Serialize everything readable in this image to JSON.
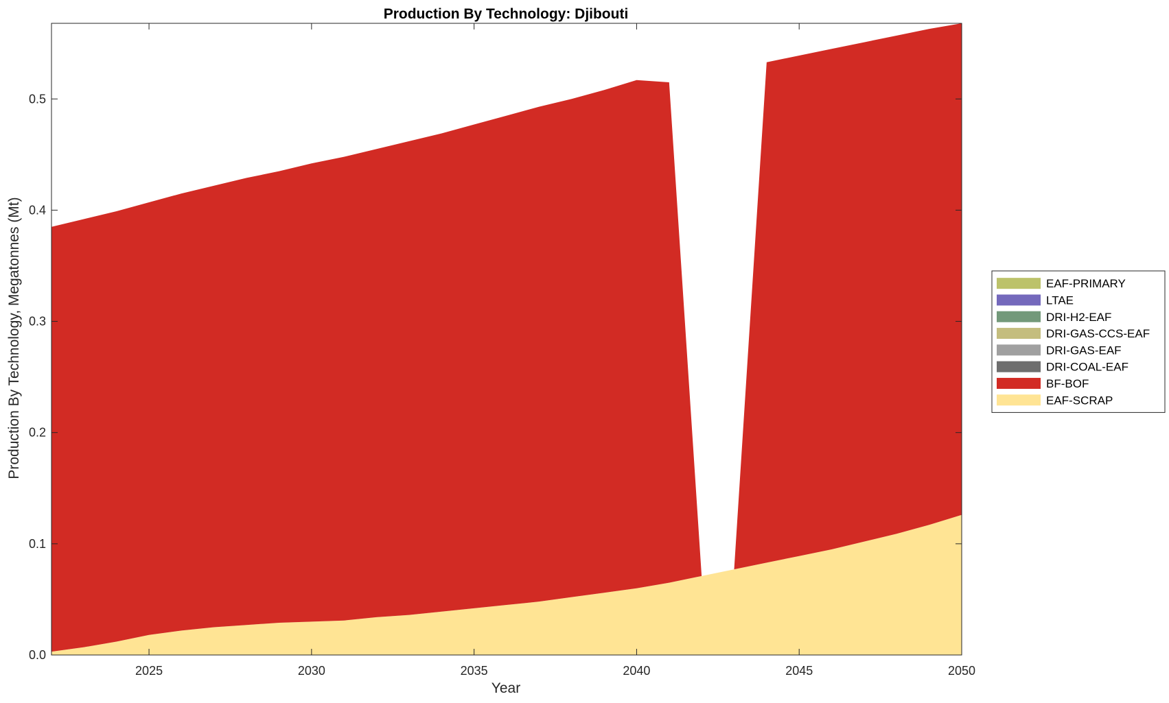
{
  "chart_data": {
    "type": "area",
    "stacked": true,
    "title": "Production By Technology: Djibouti",
    "xlabel": "Year",
    "ylabel": "Production By Technology, Megatonnes (Mt)",
    "xlim": [
      2022,
      2050
    ],
    "ylim": [
      0,
      0.568
    ],
    "x_ticks": [
      2025,
      2030,
      2035,
      2040,
      2045,
      2050
    ],
    "x_tick_labels": [
      "2025",
      "2030",
      "2035",
      "2040",
      "2045",
      "2050"
    ],
    "y_ticks": [
      0,
      0.1,
      0.2,
      0.3,
      0.4,
      0.5
    ],
    "y_tick_labels": [
      "0.0",
      "0.1",
      "0.2",
      "0.3",
      "0.4",
      "0.5"
    ],
    "grid": false,
    "legend_position": "right-outside",
    "x": [
      2022,
      2023,
      2024,
      2025,
      2026,
      2027,
      2028,
      2029,
      2030,
      2031,
      2032,
      2033,
      2034,
      2035,
      2036,
      2037,
      2038,
      2039,
      2040,
      2041,
      2042,
      2043,
      2044,
      2045,
      2046,
      2047,
      2048,
      2049,
      2050
    ],
    "series": [
      {
        "name": "EAF-SCRAP",
        "color": "#FFE494",
        "values": [
          0.003,
          0.007,
          0.012,
          0.018,
          0.022,
          0.025,
          0.027,
          0.029,
          0.03,
          0.031,
          0.034,
          0.036,
          0.039,
          0.042,
          0.045,
          0.048,
          0.052,
          0.056,
          0.06,
          0.065,
          0.071,
          0.077,
          0.083,
          0.089,
          0.095,
          0.102,
          0.109,
          0.117,
          0.126
        ]
      },
      {
        "name": "BF-BOF",
        "color": "#D22B24",
        "values": [
          0.382,
          0.385,
          0.387,
          0.389,
          0.393,
          0.397,
          0.402,
          0.406,
          0.412,
          0.417,
          0.421,
          0.426,
          0.43,
          0.435,
          0.44,
          0.445,
          0.448,
          0.452,
          0.457,
          0.45,
          0,
          0,
          0.45,
          0.45,
          0.45,
          0.449,
          0.448,
          0.446,
          0.442
        ]
      },
      {
        "name": "DRI-COAL-EAF",
        "color": "#6E6E6E",
        "values": [
          0,
          0,
          0,
          0,
          0,
          0,
          0,
          0,
          0,
          0,
          0,
          0,
          0,
          0,
          0,
          0,
          0,
          0,
          0,
          0,
          0,
          0,
          0,
          0,
          0,
          0,
          0,
          0,
          0
        ]
      },
      {
        "name": "DRI-GAS-EAF",
        "color": "#A0A0A0",
        "values": [
          0,
          0,
          0,
          0,
          0,
          0,
          0,
          0,
          0,
          0,
          0,
          0,
          0,
          0,
          0,
          0,
          0,
          0,
          0,
          0,
          0,
          0,
          0,
          0,
          0,
          0,
          0,
          0,
          0
        ]
      },
      {
        "name": "DRI-GAS-CCS-EAF",
        "color": "#C4BD7E",
        "values": [
          0,
          0,
          0,
          0,
          0,
          0,
          0,
          0,
          0,
          0,
          0,
          0,
          0,
          0,
          0,
          0,
          0,
          0,
          0,
          0,
          0,
          0,
          0,
          0,
          0,
          0,
          0,
          0,
          0
        ]
      },
      {
        "name": "DRI-H2-EAF",
        "color": "#73997A",
        "values": [
          0,
          0,
          0,
          0,
          0,
          0,
          0,
          0,
          0,
          0,
          0,
          0,
          0,
          0,
          0,
          0,
          0,
          0,
          0,
          0,
          0,
          0,
          0,
          0,
          0,
          0,
          0,
          0,
          0
        ]
      },
      {
        "name": "LTAE",
        "color": "#7469BC",
        "values": [
          0,
          0,
          0,
          0,
          0,
          0,
          0,
          0,
          0,
          0,
          0,
          0,
          0,
          0,
          0,
          0,
          0,
          0,
          0,
          0,
          0,
          0,
          0,
          0,
          0,
          0,
          0,
          0,
          0
        ]
      },
      {
        "name": "EAF-PRIMARY",
        "color": "#BCC26A",
        "values": [
          0,
          0,
          0,
          0,
          0,
          0,
          0,
          0,
          0,
          0,
          0,
          0,
          0,
          0,
          0,
          0,
          0,
          0,
          0,
          0,
          0,
          0,
          0,
          0,
          0,
          0,
          0,
          0,
          0
        ]
      }
    ],
    "legend_order": [
      "EAF-PRIMARY",
      "LTAE",
      "DRI-H2-EAF",
      "DRI-GAS-CCS-EAF",
      "DRI-GAS-EAF",
      "DRI-COAL-EAF",
      "BF-BOF",
      "EAF-SCRAP"
    ]
  }
}
